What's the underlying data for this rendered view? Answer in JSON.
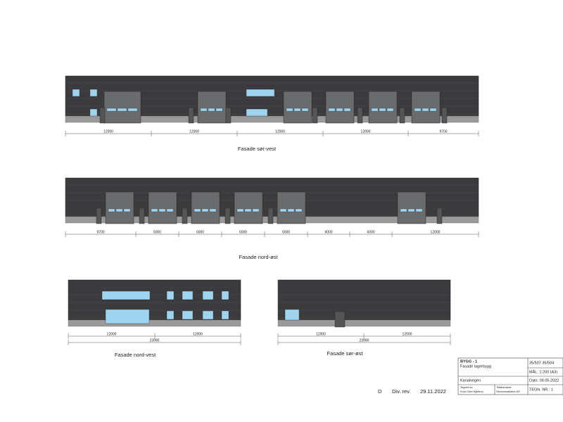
{
  "drawings": [
    {
      "title": "Fasade sør-vest",
      "dimensions": [
        "12000",
        "12000",
        "12000",
        "12000",
        "9700"
      ]
    },
    {
      "title": "Fasade nord-øst",
      "dimensions": [
        "9700",
        "6000",
        "6000",
        "6000",
        "6000",
        "6000",
        "6000",
        "12000"
      ]
    },
    {
      "title": "Fasade nord-vest",
      "dimensions": [
        "12000",
        "12000"
      ],
      "overall": "23990"
    },
    {
      "title": "Fasade sør-øst",
      "dimensions": [
        "12000",
        "12000"
      ],
      "overall": "23990"
    }
  ],
  "title_block": {
    "building": "BYGG - 1",
    "drawing": "Fasade lagerbygg",
    "property": "35/507  35/504",
    "scale": "MÅL: 1:200 (A3)",
    "address": "Kanalvegen",
    "date": "Dato: 06.05.2022",
    "drawn_by_label": "Tegnet av:",
    "drawn_by": "Knut Olav Mjelhus",
    "owner_label": "Tiltakshaver:",
    "owner": "Skurvebakkane AS",
    "drawing_number": "TEGN. NR.: 1"
  },
  "revision": {
    "letter": "D",
    "description": "Div. rev.",
    "date": "29.11.2022"
  }
}
